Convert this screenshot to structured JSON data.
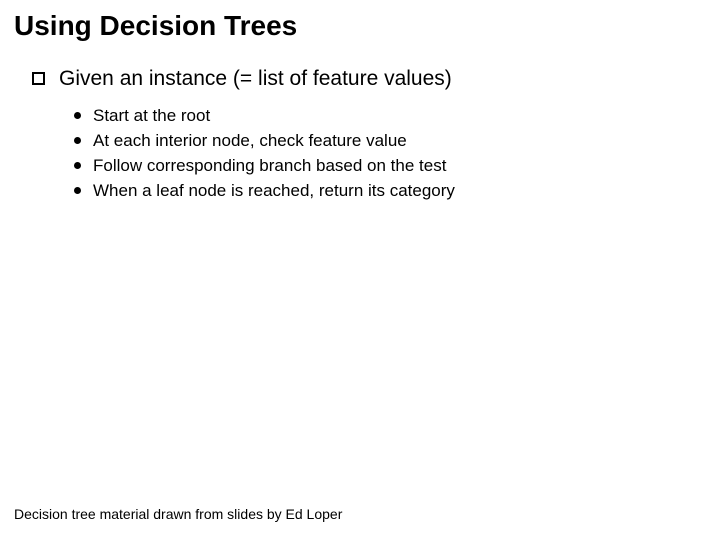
{
  "title": {
    "text": "Using Decision Trees",
    "fontsize": 28,
    "fontweight": 900,
    "color": "#000000"
  },
  "outer": {
    "text": "Given an instance (= list of feature values)",
    "fontsize": 21,
    "color": "#000000",
    "bullet_border_color": "#000000"
  },
  "inner": {
    "fontsize": 17,
    "color": "#000000",
    "bullet_color": "#000000",
    "items": [
      "Start at the root",
      "At each interior node, check feature value",
      "Follow corresponding branch based on the test",
      "When a leaf node is reached, return its category"
    ]
  },
  "footer": {
    "text": "Decision tree material drawn from slides by Ed Loper",
    "fontsize": 14,
    "color": "#000000"
  },
  "background_color": "#ffffff"
}
